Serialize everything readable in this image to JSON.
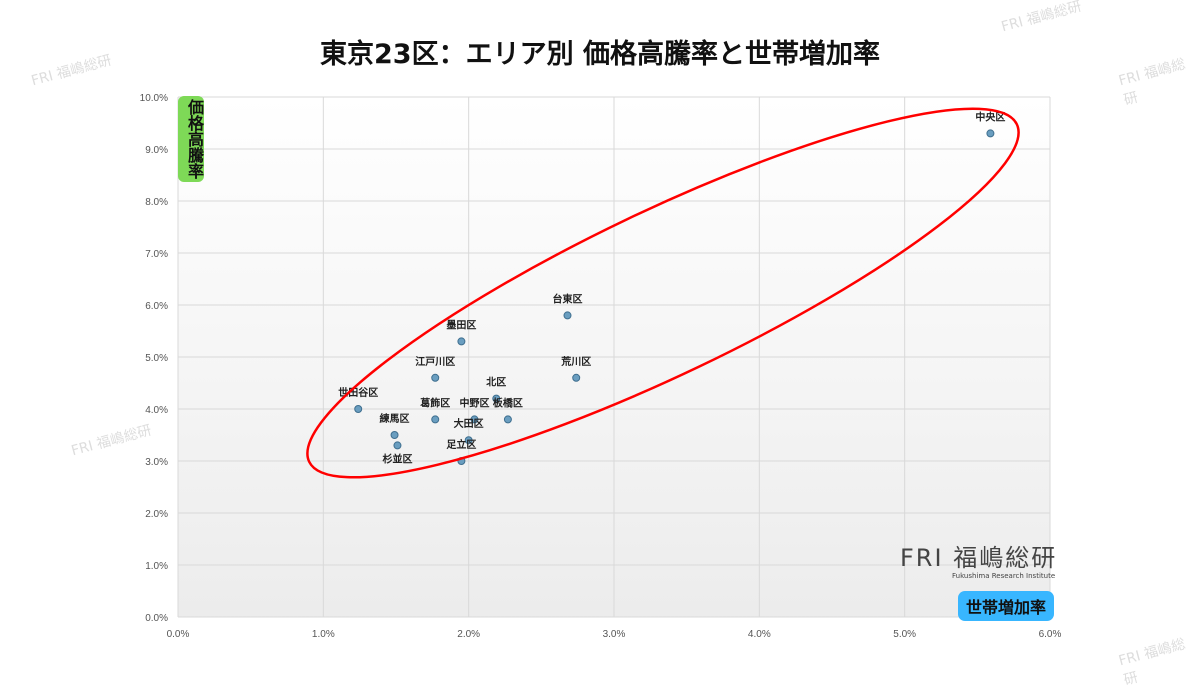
{
  "title": "東京23区：エリア別 価格高騰率と世帯増加率",
  "logo": {
    "mark": "FRI",
    "name": "福嶋総研",
    "sub": "Fukushima Research Institute"
  },
  "chart_data": {
    "type": "scatter",
    "title": "東京23区：エリア別 価格高騰率と世帯増加率",
    "xlabel": "世帯増加率",
    "ylabel": "価格高騰率",
    "xlim": [
      0,
      6
    ],
    "ylim": [
      0,
      10
    ],
    "xticks": [
      "0.0%",
      "1.0%",
      "2.0%",
      "3.0%",
      "4.0%",
      "5.0%",
      "6.0%"
    ],
    "yticks": [
      "0.0%",
      "1.0%",
      "2.0%",
      "3.0%",
      "4.0%",
      "5.0%",
      "6.0%",
      "7.0%",
      "8.0%",
      "9.0%",
      "10.0%"
    ],
    "grid": true,
    "point_color": "#6a9ec0",
    "highlight_color": "#ff0000",
    "points": [
      {
        "label": "中央区",
        "x": 5.59,
        "y": 9.3
      },
      {
        "label": "台東区",
        "x": 2.68,
        "y": 5.8
      },
      {
        "label": "墨田区",
        "x": 1.95,
        "y": 5.3
      },
      {
        "label": "荒川区",
        "x": 2.74,
        "y": 4.6
      },
      {
        "label": "江戸川区",
        "x": 1.77,
        "y": 4.6
      },
      {
        "label": "北区",
        "x": 2.19,
        "y": 4.2
      },
      {
        "label": "世田谷区",
        "x": 1.24,
        "y": 4.0
      },
      {
        "label": "葛飾区",
        "x": 1.77,
        "y": 3.8
      },
      {
        "label": "中野区",
        "x": 2.04,
        "y": 3.8
      },
      {
        "label": "板橋区",
        "x": 2.27,
        "y": 3.8
      },
      {
        "label": "大田区",
        "x": 2.0,
        "y": 3.4
      },
      {
        "label": "練馬区",
        "x": 1.49,
        "y": 3.5
      },
      {
        "label": "杉並区",
        "x": 1.51,
        "y": 3.3
      },
      {
        "label": "足立区",
        "x": 1.95,
        "y": 3.0
      }
    ]
  }
}
